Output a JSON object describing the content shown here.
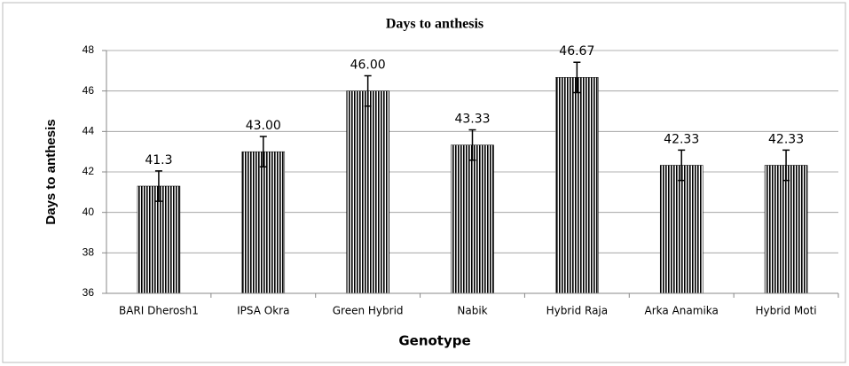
{
  "chart_data": {
    "type": "bar",
    "title": "Days to anthesis",
    "x_label": "Genotype",
    "y_label": "Days to anthesis",
    "categories": [
      "BARI Dherosh1",
      "IPSA Okra",
      "Green Hybrid",
      "Nabik",
      "Hybrid Raja",
      "Arka Anamika",
      "Hybrid Moti"
    ],
    "values": [
      41.3,
      43.0,
      46.0,
      43.33,
      46.67,
      42.33,
      42.33
    ],
    "value_labels": [
      "41.3",
      "43.00",
      "46.00",
      "43.33",
      "46.67",
      "42.33",
      "42.33"
    ],
    "errors": [
      0.75,
      0.75,
      0.75,
      0.75,
      0.75,
      0.75,
      0.75
    ],
    "color": "#000000",
    "ylim": [
      36,
      48
    ],
    "yticks": [
      36,
      38,
      40,
      42,
      44,
      46,
      48
    ],
    "grid": true
  }
}
